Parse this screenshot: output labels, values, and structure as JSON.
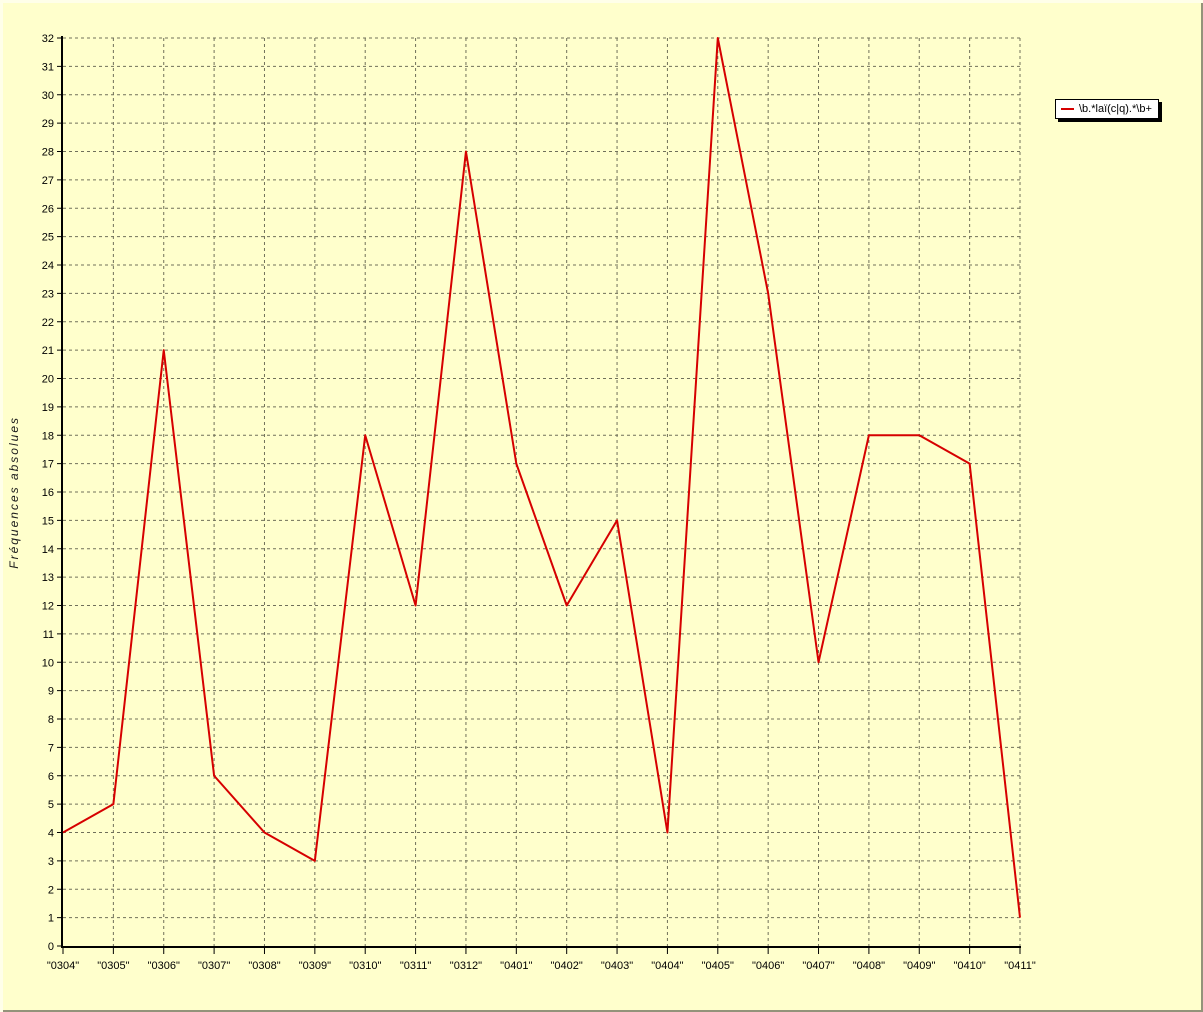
{
  "page": {
    "background": "#ffffcc",
    "frame_light": "#ffffe9",
    "frame_dark": "#93937a"
  },
  "colors": {
    "line": "#d60000",
    "grid": "#70705a",
    "axis": "#000000",
    "tick_text": "#000000",
    "legend_background": "#ffffff"
  },
  "legend": {
    "position": "top-right"
  },
  "chart_data": {
    "type": "line",
    "title": "",
    "xlabel": "",
    "ylabel": "Fréquences absolues",
    "categories": [
      "\"0304\"",
      "\"0305\"",
      "\"0306\"",
      "\"0307\"",
      "\"0308\"",
      "\"0309\"",
      "\"0310\"",
      "\"0311\"",
      "\"0312\"",
      "\"0401\"",
      "\"0402\"",
      "\"0403\"",
      "\"0404\"",
      "\"0405\"",
      "\"0406\"",
      "\"0407\"",
      "\"0408\"",
      "\"0409\"",
      "\"0410\"",
      "\"0411\""
    ],
    "series": [
      {
        "name": "\\b.*laï(c|q).*\\b+",
        "color": "#d60000",
        "values": [
          4,
          5,
          21,
          6,
          4,
          3,
          18,
          12,
          28,
          17,
          12,
          15,
          4,
          32,
          23,
          10,
          18,
          18,
          17,
          1
        ]
      }
    ],
    "ylim": [
      0,
      32
    ],
    "ytick_step": 1,
    "grid": "both",
    "grid_style": "dashed",
    "legend_position": "top-right"
  }
}
